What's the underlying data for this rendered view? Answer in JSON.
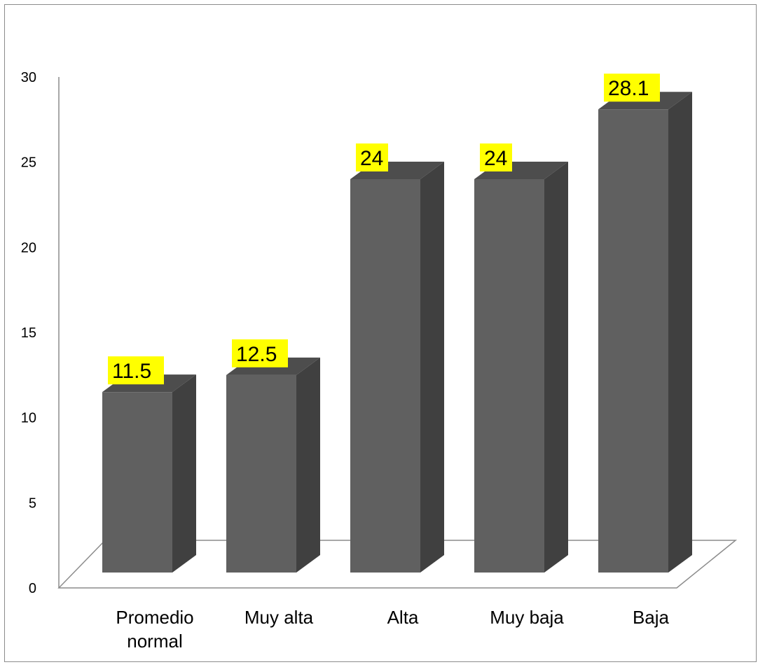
{
  "chart_data": {
    "type": "bar",
    "categories": [
      "Promedio normal",
      "Muy alta",
      "Alta",
      "Muy baja",
      "Baja"
    ],
    "category_lines": [
      [
        "Promedio",
        "normal"
      ],
      [
        "Muy alta"
      ],
      [
        "Alta"
      ],
      [
        "Muy baja"
      ],
      [
        "Baja"
      ]
    ],
    "values": [
      11.5,
      12.5,
      24,
      24,
      28.1
    ],
    "data_labels": [
      "11.5",
      "12.5",
      "24",
      "24",
      "28.1"
    ],
    "ylim": [
      0,
      30
    ],
    "yticks": [
      0,
      5,
      10,
      15,
      20,
      25,
      30
    ],
    "title": "",
    "xlabel": "",
    "ylabel": "",
    "grid": false,
    "legend": "none",
    "style": "3d-column",
    "colors": {
      "bar_front": "#606060",
      "bar_side": "#404040",
      "bar_top": "#4d4d4d",
      "label_bg": "#ffff00",
      "axis": "#8c8c8c"
    }
  }
}
